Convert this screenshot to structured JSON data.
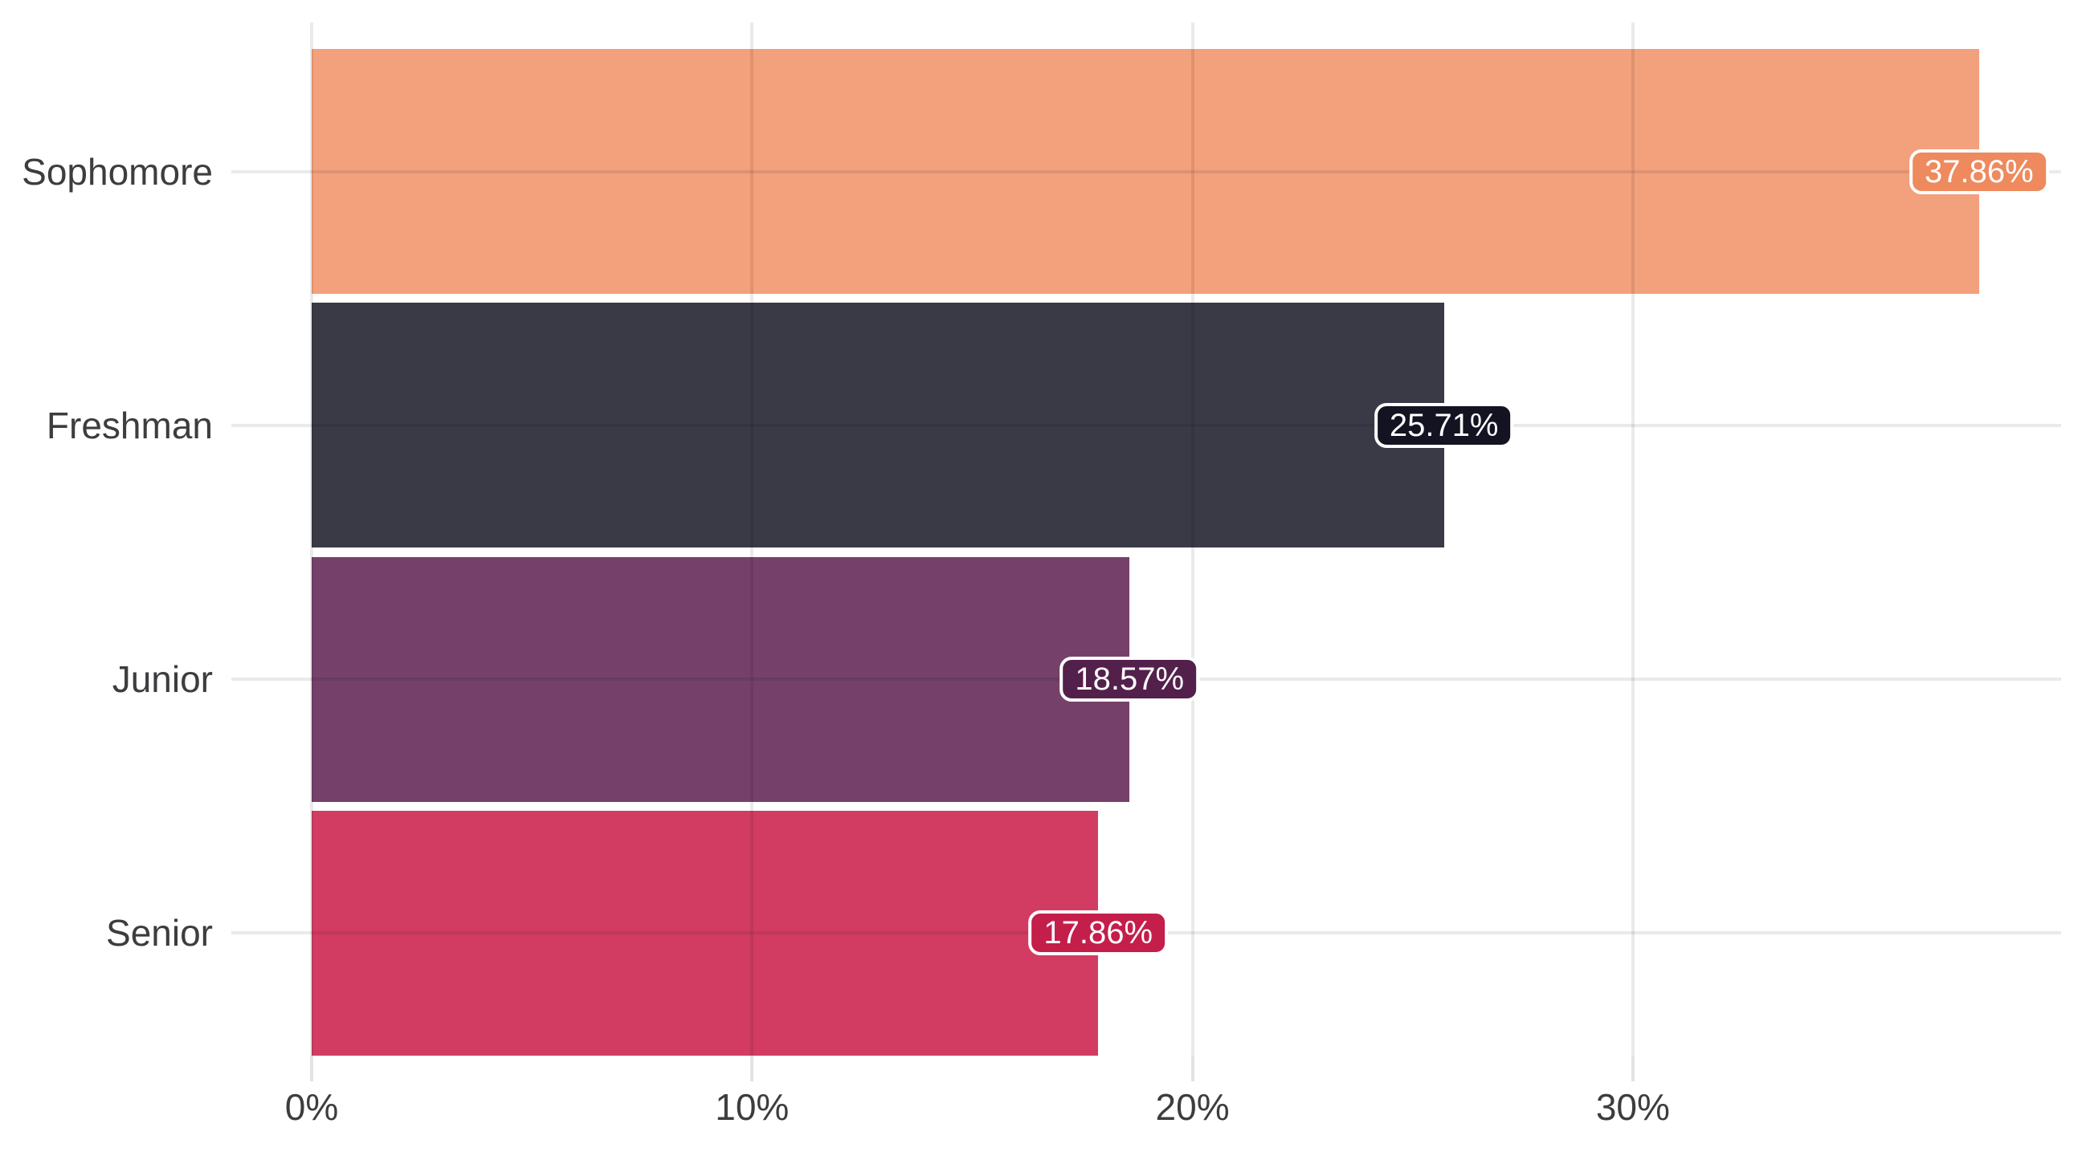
{
  "page": {
    "background": "#ffffff"
  },
  "chart_data": {
    "type": "bar",
    "orientation": "horizontal",
    "title": "",
    "xlabel": "",
    "ylabel": "",
    "categories": [
      "Sophomore",
      "Freshman",
      "Junior",
      "Senior"
    ],
    "values": [
      37.86,
      25.71,
      18.57,
      17.86
    ],
    "value_labels": [
      "37.86%",
      "25.71%",
      "18.57%",
      "17.86%"
    ],
    "value_unit": "%",
    "bar_colors": [
      "#f3a07c",
      "#3a3a47",
      "#75416a",
      "#d23c62"
    ],
    "badge_colors": [
      "#ee8a5e",
      "#131322",
      "#53204c",
      "#c41e4b"
    ],
    "x_ticks": [
      0,
      10,
      20,
      30
    ],
    "x_tick_labels": [
      "0%",
      "10%",
      "20%",
      "30%"
    ],
    "xlim": [
      0,
      39.7
    ],
    "grid": true,
    "legend": false,
    "value_labels_position": "end-of-bar",
    "axis_text_color": "#3d3d40",
    "badge_text_color": "#ffffff",
    "badge_border_color": "#ffffff",
    "gridline_color": "#e9e9e9"
  }
}
